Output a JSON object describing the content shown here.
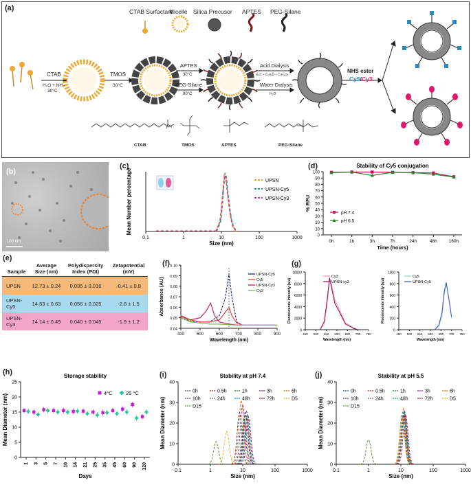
{
  "panels": {
    "a": "(a)",
    "b": "(b)",
    "c": "(c)",
    "d": "(d)",
    "e": "(e)",
    "f": "(f)",
    "g": "(g)",
    "h": "(h)",
    "i": "(i)",
    "j": "(j)"
  },
  "schematic": {
    "legend": [
      "CTAB Surfactant",
      "Micelle",
      "Silica Precusor",
      "APTES",
      "PEG-Silane"
    ],
    "step1_top": "CTAB",
    "step1_cond1": "H₂O + NH₃",
    "step1_cond2": "30°C",
    "step2_top": "TMOS",
    "step2_cond": "30°C",
    "step3a_top": "APTES",
    "step3a_cond": "30°C",
    "step3b_top": "PEG-Silane",
    "step3b_cond": "80°C",
    "step4a_top": "Acid Dialysis",
    "step4a_cond": "H₂O + C₂H₅O + C₂H₄O₂",
    "step4b_top": "Water Dialysis",
    "step4b_cond": "H₂O",
    "ester_label": "NHS ester",
    "dye1": "Cy5",
    "dye_sep": "/",
    "dye2": "Cy3",
    "chem_names": [
      "CTAB",
      "TMOS",
      "APTES",
      "PEG-Silane"
    ]
  },
  "tem": {
    "scale_label": "100 nm"
  },
  "table": {
    "headers": [
      "Sample",
      "Average Size (nm)",
      "Polydispersity Index (PDI)",
      "Zetapotential (mV)"
    ],
    "rows": [
      [
        "UPSN",
        "12.73 ± 0.24",
        "0.035 ± 0.016",
        "-0.41 ± 0.8"
      ],
      [
        "UPSN-Cy5",
        "14.53 ± 0.63",
        "0.056 ± 0.025",
        "-2.8 ± 1.5"
      ],
      [
        "UPSN-Cy3",
        "14.14 ± 0.49",
        "0.040 ± 0.045",
        "-1.9 ± 1.2"
      ]
    ],
    "colors": [
      "#f5b97a",
      "#a9d9ee",
      "#f2a4c9"
    ]
  },
  "chart_data": [
    {
      "id": "c",
      "type": "line",
      "title": "",
      "xlabel": "Size (nm)",
      "ylabel": "Mean Number percentage",
      "x_scale": "log",
      "xlim": [
        0.1,
        1000
      ],
      "ylim": [
        0,
        25
      ],
      "xticks": [
        "0.1",
        "1",
        "10",
        "100",
        "1000"
      ],
      "series": [
        {
          "name": "UPSN",
          "color": "#f39c33",
          "x": [
            7,
            9,
            10,
            11,
            12,
            13,
            14,
            16,
            18,
            20,
            24
          ],
          "values": [
            0,
            4,
            10,
            18,
            24,
            23,
            18,
            10,
            5,
            2,
            0
          ]
        },
        {
          "name": "UPSN-Cy5",
          "color": "#2a9d8f",
          "x": [
            7.5,
            9.5,
            10.5,
            11.5,
            12.5,
            13.5,
            14.5,
            16.5,
            18.5,
            21,
            25
          ],
          "values": [
            0,
            4,
            10,
            18,
            24.5,
            23,
            18,
            10,
            5,
            2,
            0
          ]
        },
        {
          "name": "UPSN-Cy3",
          "color": "#d63384",
          "x": [
            7.2,
            9.2,
            10.2,
            11.2,
            12.2,
            13.2,
            14.2,
            16.2,
            18.2,
            20.5,
            24.5
          ],
          "values": [
            0,
            4,
            10,
            18,
            23.5,
            22,
            17,
            10,
            5,
            2,
            0
          ]
        }
      ]
    },
    {
      "id": "d",
      "type": "line",
      "title": "Stability of Cy5 conjugation",
      "xlabel": "Time (hours)",
      "ylabel": "% RFU",
      "categories": [
        "0h",
        "1h",
        "3h",
        "7h",
        "24h",
        "48h",
        "160h"
      ],
      "ylim": [
        0,
        100
      ],
      "yticks": [
        "0",
        "10",
        "20",
        "30",
        "40",
        "50",
        "60",
        "70",
        "80",
        "90",
        "100"
      ],
      "series": [
        {
          "name": "pH 7.4",
          "color": "#c2185b",
          "values": [
            99,
            99.5,
            99.5,
            99,
            98.5,
            98,
            92
          ]
        },
        {
          "name": "pH 6.5",
          "color": "#2e7d32",
          "values": [
            98.5,
            99.5,
            94,
            99,
            98.5,
            96,
            91.5
          ]
        }
      ]
    },
    {
      "id": "f",
      "type": "line",
      "title": "",
      "xlabel": "Wavelength (nm)",
      "ylabel": "Absorbance (AU)",
      "xlim": [
        400,
        900
      ],
      "ylim": [
        0.04,
        0.1
      ],
      "xticks": [
        "400",
        "500",
        "600",
        "700",
        "800",
        "900"
      ],
      "yticks": [
        "0.04",
        "0.05",
        "0.06",
        "0.07",
        "0.08",
        "0.09",
        "0.10"
      ],
      "series": [
        {
          "name": "UPSN-Cy5",
          "color": "#1a237e",
          "x": [
            400,
            450,
            500,
            550,
            600,
            630,
            650,
            665,
            690,
            720,
            800,
            900
          ],
          "values": [
            0.05,
            0.047,
            0.046,
            0.046,
            0.052,
            0.068,
            0.092,
            0.07,
            0.046,
            0.043,
            0.043,
            0.043
          ]
        },
        {
          "name": "Cy5",
          "color": "#e53935",
          "x": [
            400,
            450,
            500,
            550,
            600,
            630,
            650,
            665,
            690,
            720,
            800,
            900
          ],
          "values": [
            0.051,
            0.048,
            0.046,
            0.046,
            0.048,
            0.055,
            0.06,
            0.052,
            0.045,
            0.043,
            0.043,
            0.043
          ]
        },
        {
          "name": "UPSN-Cy3",
          "color": "#c2185b",
          "x": [
            400,
            450,
            500,
            530,
            555,
            575,
            600,
            650,
            700,
            800,
            900
          ],
          "values": [
            0.052,
            0.048,
            0.05,
            0.056,
            0.064,
            0.052,
            0.046,
            0.044,
            0.043,
            0.043,
            0.043
          ]
        },
        {
          "name": "Cy3",
          "color": "#7cb342",
          "x": [
            400,
            450,
            500,
            550,
            600,
            700,
            800,
            900
          ],
          "values": [
            0.05,
            0.046,
            0.045,
            0.044,
            0.044,
            0.043,
            0.043,
            0.043
          ]
        }
      ]
    },
    {
      "id": "g1",
      "type": "line",
      "title": "",
      "xlabel": "Wavelength (nm)",
      "ylabel": "Fluorescence Intensity (a.u)",
      "xlim": [
        450,
        750
      ],
      "ylim": [
        0,
        10000
      ],
      "xticks": [
        "450",
        "500",
        "550",
        "600",
        "650",
        "700",
        "750"
      ],
      "yticks": [
        "0",
        "2000",
        "4000",
        "6000",
        "8000",
        "10000"
      ],
      "series": [
        {
          "name": "Cy3",
          "color": "#f48fb1",
          "x": [
            520,
            540,
            555,
            565,
            575,
            590,
            610,
            640,
            680,
            700
          ],
          "values": [
            0,
            1000,
            5000,
            8600,
            7800,
            5200,
            3600,
            1200,
            300,
            0
          ]
        },
        {
          "name": "UPSN-cy3",
          "color": "#880e4f",
          "x": [
            520,
            540,
            555,
            565,
            575,
            590,
            610,
            640,
            680,
            700
          ],
          "values": [
            0,
            1400,
            5600,
            9000,
            7200,
            4600,
            3200,
            1000,
            200,
            0
          ]
        }
      ]
    },
    {
      "id": "g2",
      "type": "line",
      "title": "",
      "xlabel": "Wavelength (nm)",
      "ylabel": "Fluorescence Intensity (a.u)",
      "xlim": [
        450,
        750
      ],
      "ylim": [
        0,
        1000
      ],
      "xticks": [
        "450",
        "500",
        "550",
        "600",
        "650",
        "700",
        "750"
      ],
      "yticks": [
        "0",
        "200",
        "400",
        "600",
        "800",
        "1000"
      ],
      "series": [
        {
          "name": "Cy5",
          "color": "#90caf9",
          "x": [
            620,
            640,
            655,
            665,
            675,
            690,
            700
          ],
          "values": [
            0,
            60,
            250,
            600,
            790,
            450,
            200
          ]
        },
        {
          "name": "UPSN-Cy5",
          "color": "#3f51b5",
          "x": [
            620,
            640,
            655,
            665,
            675,
            690,
            700
          ],
          "values": [
            0,
            80,
            300,
            650,
            820,
            480,
            220
          ]
        }
      ]
    },
    {
      "id": "h",
      "type": "scatter",
      "title": "Storage stability",
      "xlabel": "Days",
      "ylabel": "Mean Diameter (nm)",
      "categories": [
        "1",
        "3",
        "5",
        "7",
        "10",
        "14",
        "21",
        "25",
        "35",
        "45",
        "60",
        "90",
        "120"
      ],
      "ylim": [
        0,
        25
      ],
      "yticks": [
        "0",
        "5",
        "10",
        "15",
        "20",
        "25"
      ],
      "series": [
        {
          "name": "4°C",
          "color": "#c71bd6",
          "values": [
            15.5,
            15,
            15.8,
            15.5,
            15.5,
            15.2,
            15.3,
            15,
            14.8,
            15.5,
            16,
            17.5,
            13.5
          ]
        },
        {
          "name": "25 °C",
          "color": "#2bc4a3",
          "values": [
            15.2,
            14.2,
            15.5,
            15,
            15,
            15.3,
            14.5,
            14,
            14.8,
            14.5,
            15,
            13,
            15
          ]
        }
      ]
    },
    {
      "id": "i",
      "type": "line",
      "title": "Stability at pH 7.4",
      "xlabel": "Size (nm)",
      "ylabel": "Mean Diameter (nm)",
      "x_scale": "log",
      "xlim": [
        0.1,
        1000
      ],
      "ylim": [
        0,
        40
      ],
      "xticks": [
        "0.1",
        "1",
        "10",
        "100",
        "1000"
      ],
      "yticks": [
        "0",
        "10",
        "20",
        "30",
        "40"
      ],
      "legend": [
        "0h",
        "0.5h",
        "1h",
        "3h",
        "6h",
        "10h",
        "24h",
        "48h",
        "72h",
        "D5",
        "D15"
      ],
      "series_peaks": [
        {
          "name": "0h",
          "center": 12,
          "height": 25
        },
        {
          "name": "0.5h",
          "center": 12.5,
          "height": 24
        },
        {
          "name": "1h",
          "center": 11,
          "height": 22
        },
        {
          "name": "3h",
          "center": 10,
          "height": 29
        },
        {
          "name": "6h",
          "center": 9,
          "height": 31
        },
        {
          "name": "10h",
          "center": 8,
          "height": 25
        },
        {
          "name": "24h",
          "center": 13,
          "height": 26
        },
        {
          "name": "48h",
          "center": 14,
          "height": 24
        },
        {
          "name": "72h",
          "center": 15,
          "height": 23
        },
        {
          "name": "D5",
          "center": 3.2,
          "height": 16
        },
        {
          "name": "D15",
          "center": 1.5,
          "height": 11
        }
      ]
    },
    {
      "id": "j",
      "type": "line",
      "title": "Stability at pH 5.5",
      "xlabel": "Size (nm)",
      "ylabel": "Mean Diameter (nm)",
      "x_scale": "log",
      "xlim": [
        0.1,
        1000
      ],
      "ylim": [
        0,
        40
      ],
      "xticks": [
        "0.1",
        "1",
        "10",
        "100",
        "1000"
      ],
      "yticks": [
        "0",
        "10",
        "20",
        "30",
        "40"
      ],
      "legend": [
        "0h",
        "0.5h",
        "1h",
        "3h",
        "6h",
        "10h",
        "24h",
        "48h",
        "72h",
        "D5",
        "D15"
      ],
      "series_peaks": [
        {
          "name": "0h",
          "center": 12,
          "height": 25
        },
        {
          "name": "0.5h",
          "center": 12.5,
          "height": 24
        },
        {
          "name": "1h",
          "center": 11.5,
          "height": 23
        },
        {
          "name": "3h",
          "center": 13,
          "height": 26
        },
        {
          "name": "6h",
          "center": 12,
          "height": 27
        },
        {
          "name": "10h",
          "center": 11,
          "height": 24
        },
        {
          "name": "24h",
          "center": 13,
          "height": 25
        },
        {
          "name": "48h",
          "center": 12.5,
          "height": 26
        },
        {
          "name": "72h",
          "center": 14,
          "height": 24
        },
        {
          "name": "D5",
          "center": 11,
          "height": 22
        },
        {
          "name": "D15",
          "center": 1.0,
          "height": 12
        }
      ]
    }
  ],
  "series_colors": {
    "0h": "#3949ab",
    "0.5h": "#c62828",
    "1h": "#2e7d32",
    "3h": "#8e24aa",
    "6h": "#ef6c00",
    "10h": "#37474f",
    "24h": "#6d4c41",
    "48h": "#0097a7",
    "72h": "#ad1457",
    "D5": "#f9a825",
    "D15": "#558b2f"
  }
}
